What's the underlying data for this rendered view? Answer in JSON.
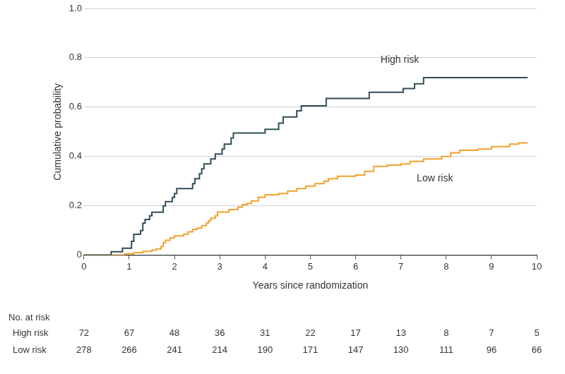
{
  "chart_data": {
    "type": "line",
    "line_style": "step",
    "x_label": "Years since randomization",
    "y_label": "Cumulative probability",
    "xlim": [
      0,
      10
    ],
    "xticks": [
      0,
      1,
      2,
      3,
      4,
      5,
      6,
      7,
      8,
      9,
      10
    ],
    "ylim": [
      0,
      1
    ],
    "yticks": [
      0,
      0.2,
      0.4,
      0.6,
      0.8,
      {
        "value": 1,
        "label": "1.0"
      }
    ],
    "grid": "y",
    "series": [
      {
        "name": "High risk",
        "color": "#2f4d55",
        "x": [
          0,
          0.6,
          0.85,
          1.05,
          1.1,
          1.25,
          1.3,
          1.35,
          1.45,
          1.5,
          1.75,
          1.8,
          1.95,
          2.0,
          2.05,
          2.4,
          2.45,
          2.55,
          2.6,
          2.65,
          2.8,
          2.9,
          3.05,
          3.1,
          3.25,
          3.3,
          4.0,
          4.3,
          4.4,
          4.7,
          4.8,
          5.35,
          6.3,
          7.05,
          7.3,
          7.5,
          9.8
        ],
        "values": [
          0,
          0.014,
          0.028,
          0.056,
          0.085,
          0.1,
          0.13,
          0.145,
          0.16,
          0.174,
          0.2,
          0.217,
          0.234,
          0.25,
          0.27,
          0.29,
          0.31,
          0.33,
          0.35,
          0.37,
          0.39,
          0.41,
          0.43,
          0.45,
          0.475,
          0.495,
          0.51,
          0.535,
          0.56,
          0.585,
          0.605,
          0.635,
          0.66,
          0.675,
          0.695,
          0.72,
          0.72
        ]
      },
      {
        "name": "Low risk",
        "color": "#f2a22c",
        "x": [
          0,
          0.9,
          1.1,
          1.3,
          1.5,
          1.6,
          1.7,
          1.75,
          1.8,
          1.9,
          2.0,
          2.2,
          2.3,
          2.4,
          2.5,
          2.6,
          2.7,
          2.75,
          2.8,
          2.9,
          2.95,
          3.2,
          3.4,
          3.5,
          3.6,
          3.7,
          3.85,
          4.0,
          4.3,
          4.5,
          4.7,
          4.9,
          5.1,
          5.3,
          5.4,
          5.6,
          6.0,
          6.2,
          6.4,
          6.7,
          7.0,
          7.2,
          7.5,
          7.9,
          8.1,
          8.3,
          8.7,
          9.0,
          9.4,
          9.6,
          9.8
        ],
        "values": [
          0,
          0.005,
          0.01,
          0.015,
          0.02,
          0.025,
          0.035,
          0.05,
          0.06,
          0.07,
          0.078,
          0.085,
          0.095,
          0.105,
          0.11,
          0.12,
          0.13,
          0.14,
          0.15,
          0.16,
          0.175,
          0.185,
          0.195,
          0.205,
          0.21,
          0.22,
          0.235,
          0.245,
          0.25,
          0.26,
          0.27,
          0.28,
          0.29,
          0.3,
          0.31,
          0.32,
          0.325,
          0.34,
          0.36,
          0.365,
          0.37,
          0.38,
          0.39,
          0.4,
          0.415,
          0.425,
          0.43,
          0.44,
          0.45,
          0.455,
          0.455
        ]
      }
    ],
    "risk_table": {
      "title": "No. at risk",
      "rows": [
        {
          "name": "High risk",
          "values": [
            72,
            67,
            48,
            36,
            31,
            22,
            17,
            13,
            8,
            7,
            5
          ]
        },
        {
          "name": "Low risk",
          "values": [
            278,
            266,
            241,
            214,
            190,
            171,
            147,
            130,
            111,
            96,
            66
          ]
        }
      ]
    }
  }
}
